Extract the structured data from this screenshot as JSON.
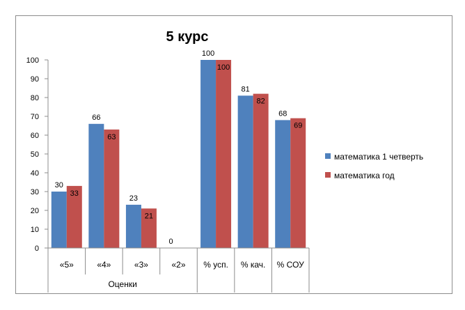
{
  "chart_data": {
    "type": "bar",
    "title": "5 курс",
    "categories": [
      "«5»",
      "«4»",
      "«3»",
      "«2»",
      "% усп.",
      "% кач.",
      "% СОУ"
    ],
    "group_labels": [
      {
        "label": "Оценки",
        "span": [
          0,
          3
        ]
      }
    ],
    "series": [
      {
        "name": "математика 1 четверть",
        "color": "#4f81bd",
        "values": [
          30,
          66,
          23,
          0,
          100,
          81,
          68
        ]
      },
      {
        "name": "математика год",
        "color": "#c0504d",
        "values": [
          33,
          63,
          21,
          null,
          100,
          82,
          69
        ]
      }
    ],
    "data_labels": [
      [
        "30",
        "66",
        "23",
        "0",
        "100",
        "81",
        "68"
      ],
      [
        "33",
        "63",
        "21",
        "",
        "100",
        "82",
        "69"
      ]
    ],
    "ylim": [
      0,
      100
    ],
    "yticks": [
      0,
      10,
      20,
      30,
      40,
      50,
      60,
      70,
      80,
      90,
      100
    ],
    "grid": false,
    "legend_position": "right"
  }
}
